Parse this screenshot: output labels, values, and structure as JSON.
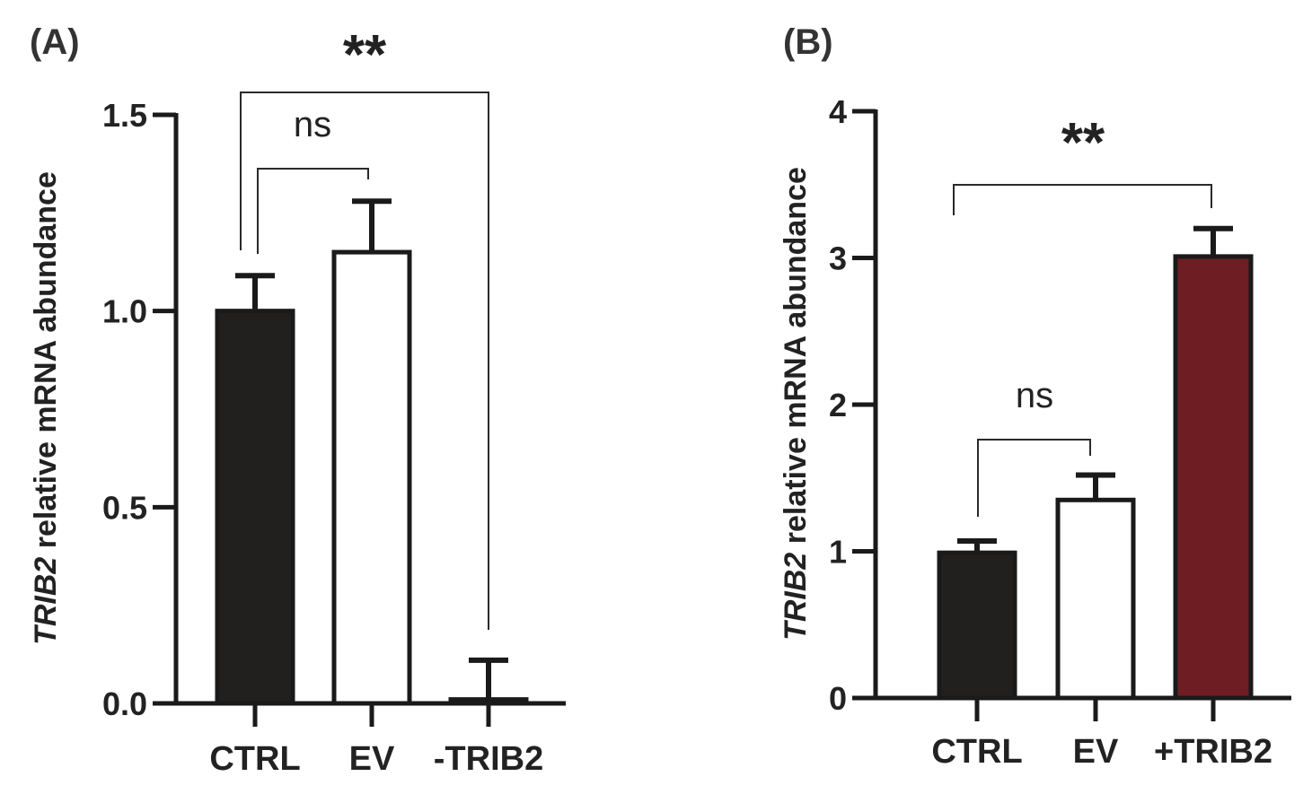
{
  "chart_data": [
    {
      "type": "bar",
      "panel": "(A)",
      "title": "",
      "xlabel": "",
      "ylabel_gene": "TRIB2",
      "ylabel_rest": " relative mRNA abundance",
      "ylim": [
        0,
        1.5
      ],
      "ticks": [
        "0.0",
        "0.5",
        "1.0",
        "1.5"
      ],
      "tick_values": [
        0,
        0.5,
        1.0,
        1.5
      ],
      "categories": [
        "CTRL",
        "EV",
        "-TRIB2"
      ],
      "values": [
        1.0,
        1.15,
        0.01
      ],
      "errors": [
        0.09,
        0.13,
        0.1
      ],
      "colors": [
        "#221f1f",
        "#ffffff",
        "#ffffff"
      ],
      "significance": [
        {
          "from": "CTRL",
          "to": "EV",
          "label": "ns"
        },
        {
          "from": "CTRL",
          "to": "-TRIB2",
          "label": "**"
        }
      ]
    },
    {
      "type": "bar",
      "panel": "(B)",
      "title": "",
      "xlabel": "",
      "ylabel_gene": "TRIB2",
      "ylabel_rest": " relative mRNA abundance",
      "ylim": [
        0,
        4
      ],
      "ticks": [
        "0",
        "1",
        "2",
        "3",
        "4"
      ],
      "tick_values": [
        0,
        1,
        2,
        3,
        4
      ],
      "categories": [
        "CTRL",
        "EV",
        "+TRIB2"
      ],
      "values": [
        0.99,
        1.35,
        3.01
      ],
      "errors": [
        0.08,
        0.17,
        0.19
      ],
      "colors": [
        "#221f1f",
        "#ffffff",
        "#6e1e22"
      ],
      "significance": [
        {
          "from": "CTRL",
          "to": "EV",
          "label": "ns"
        },
        {
          "from": "CTRL",
          "to": "+TRIB2",
          "label": "**"
        }
      ]
    }
  ]
}
